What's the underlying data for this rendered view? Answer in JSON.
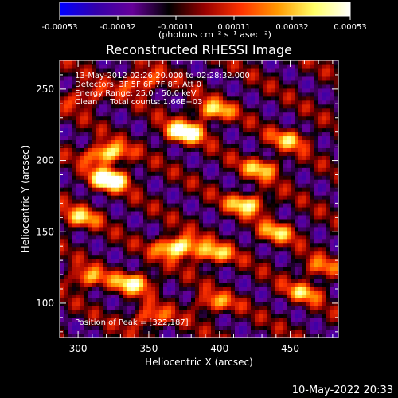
{
  "chart_data": {
    "type": "heatmap",
    "title": "Reconstructed RHESSI Image",
    "xlabel": "Heliocentric X (arcsec)",
    "ylabel": "Heliocentric Y (arcsec)",
    "xlim": [
      287,
      484
    ],
    "ylim": [
      76,
      270
    ],
    "x_ticks": [
      300,
      350,
      400,
      450
    ],
    "y_ticks": [
      100,
      150,
      200,
      250
    ],
    "colorbar": {
      "min": -0.00053,
      "max": 0.00053,
      "ticks": [
        "-0.00053",
        "-0.00032",
        "-0.00011",
        "0.00011",
        "0.00032",
        "0.00053"
      ],
      "units_label": "(photons cm⁻² s⁻¹ asec⁻²)",
      "colors": [
        "#0000ff",
        "#3300aa",
        "#660099",
        "#000000",
        "#990000",
        "#ff3300",
        "#ff9900",
        "#ffff66",
        "#ffffff"
      ]
    },
    "annotations": [
      "13-May-2012 02:26:20.000 to 02:28:32.000",
      "Detectors: 3F 5F 6F 7F 8F, Att 0",
      "Energy Range: 25.0 - 50.0 keV",
      "Clean     Total counts: 1.66E+03",
      "Position of Peak = [322,187]"
    ],
    "peak": [
      322,
      187
    ],
    "bright_sources": [
      {
        "x": 322,
        "y": 187,
        "intensity": 1.0
      },
      {
        "x": 320,
        "y": 205,
        "intensity": 0.85
      },
      {
        "x": 375,
        "y": 220,
        "intensity": 0.9
      },
      {
        "x": 395,
        "y": 235,
        "intensity": 0.6
      },
      {
        "x": 430,
        "y": 195,
        "intensity": 0.55
      },
      {
        "x": 450,
        "y": 215,
        "intensity": 0.5
      },
      {
        "x": 420,
        "y": 170,
        "intensity": 0.7
      },
      {
        "x": 440,
        "y": 150,
        "intensity": 0.5
      },
      {
        "x": 300,
        "y": 160,
        "intensity": 0.55
      },
      {
        "x": 370,
        "y": 140,
        "intensity": 0.95
      },
      {
        "x": 395,
        "y": 135,
        "intensity": 0.6
      },
      {
        "x": 340,
        "y": 115,
        "intensity": 0.7
      },
      {
        "x": 305,
        "y": 118,
        "intensity": 0.55
      },
      {
        "x": 350,
        "y": 90,
        "intensity": 0.5
      },
      {
        "x": 395,
        "y": 100,
        "intensity": 0.5
      },
      {
        "x": 460,
        "y": 108,
        "intensity": 0.5
      },
      {
        "x": 470,
        "y": 125,
        "intensity": 0.4
      },
      {
        "x": 305,
        "y": 245,
        "intensity": 0.45
      },
      {
        "x": 345,
        "y": 255,
        "intensity": 0.55
      }
    ]
  },
  "footer": {
    "timestamp": "10-May-2022 20:33"
  }
}
